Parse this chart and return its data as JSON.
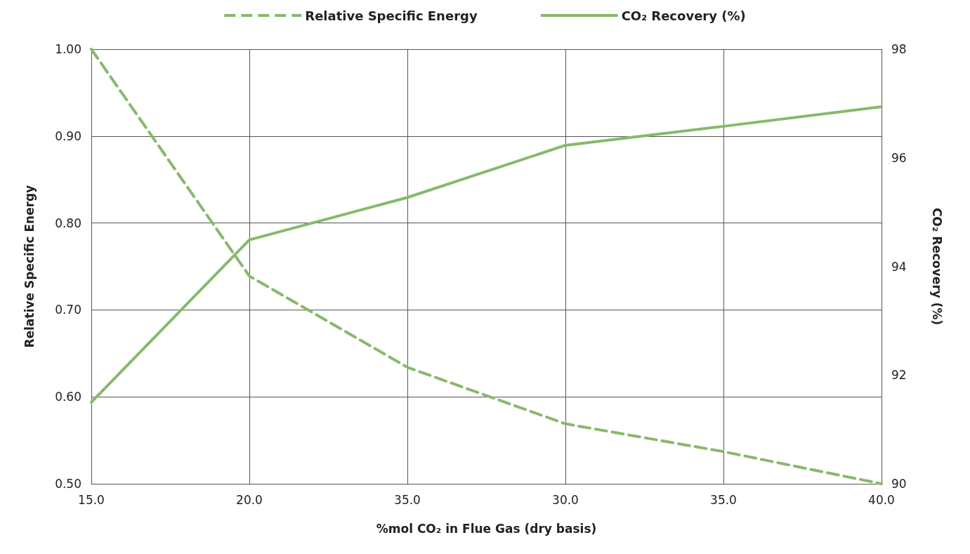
{
  "chart_data": {
    "type": "line",
    "categories": [
      "15.0",
      "20.0",
      "35.0",
      "30.0",
      "35.0",
      "40.0"
    ],
    "xlabel": "%mol CO₂ in Flue Gas (dry basis)",
    "ylabel": "Relative Specific Energy",
    "y2label": "CO₂ Recovery (%)",
    "series": [
      {
        "name": "Relative Specific Energy",
        "color": "#87b96b",
        "line_style": "dashed",
        "values": [
          1.0,
          0.739,
          0.634,
          0.569,
          0.537,
          0.5
        ]
      },
      {
        "name": "CO₂ Recovery (%)",
        "color": "#87b96b",
        "line_style": "solid",
        "axis": "y2",
        "values": [
          91.5,
          94.49,
          95.27,
          96.23,
          96.58,
          96.94
        ]
      }
    ],
    "ylim": [
      0.5,
      1.0
    ],
    "yticks": [
      {
        "value": 0.5,
        "label": "0.50"
      },
      {
        "value": 0.6,
        "label": "0.60"
      },
      {
        "value": 0.7,
        "label": "0.70"
      },
      {
        "value": 0.8,
        "label": "0.80"
      },
      {
        "value": 0.9,
        "label": "0.90"
      },
      {
        "value": 1.0,
        "label": "1.00"
      }
    ],
    "y2lim": [
      90,
      98
    ],
    "y2ticks": [
      90,
      92,
      94,
      96,
      98
    ],
    "grid": true,
    "legend": "top",
    "marker": "none"
  }
}
